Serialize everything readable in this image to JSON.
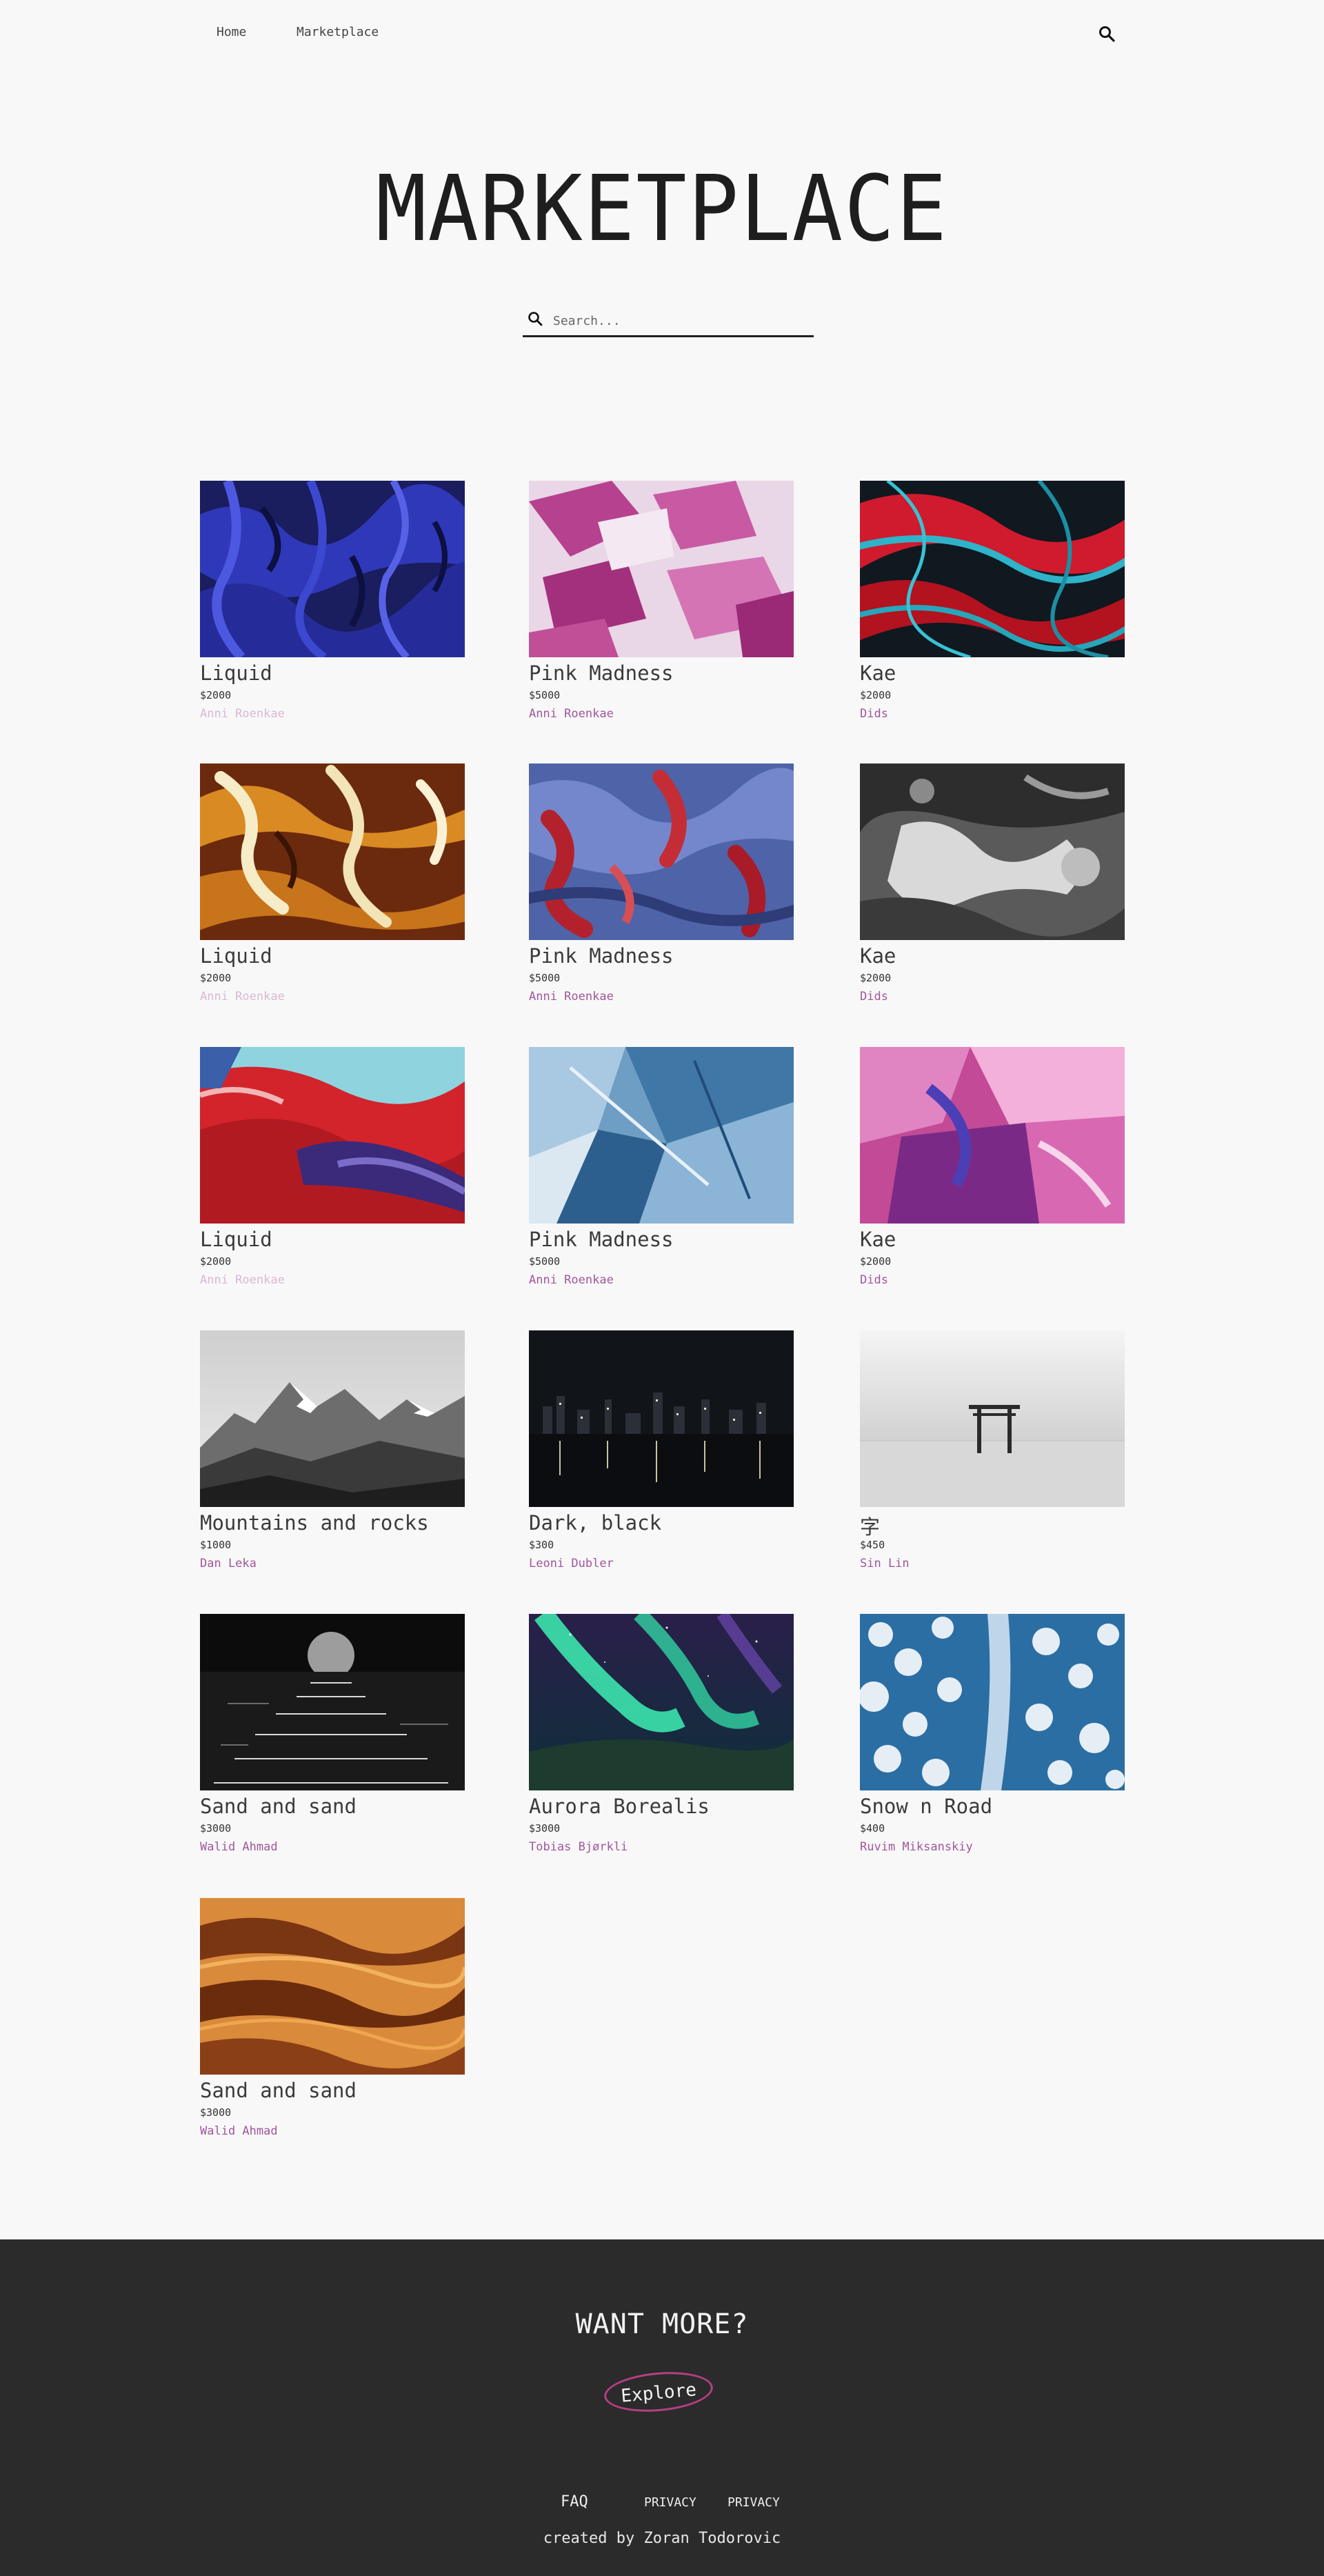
{
  "nav": {
    "home": "Home",
    "marketplace": "Marketplace"
  },
  "page": {
    "title": "MARKETPLACE"
  },
  "search": {
    "placeholder": "Search..."
  },
  "items": [
    {
      "name": "Liquid",
      "price": "$2000",
      "artist": "Anni Roenkae",
      "art": "blue-liquid"
    },
    {
      "name": "Pink Madness",
      "price": "$5000",
      "artist": "Anni Roenkae",
      "art": "pink-paint"
    },
    {
      "name": "Kae",
      "price": "$2000",
      "artist": "Dids",
      "art": "red-teal-swirl"
    },
    {
      "name": "Liquid",
      "price": "$2000",
      "artist": "Anni Roenkae",
      "art": "caramel-swirl"
    },
    {
      "name": "Pink Madness",
      "price": "$5000",
      "artist": "Anni Roenkae",
      "art": "blue-red-marble"
    },
    {
      "name": "Kae",
      "price": "$2000",
      "artist": "Dids",
      "art": "mono-texture"
    },
    {
      "name": "Liquid",
      "price": "$2000",
      "artist": "Anni Roenkae",
      "art": "red-wave"
    },
    {
      "name": "Pink Madness",
      "price": "$5000",
      "artist": "Anni Roenkae",
      "art": "blue-crystal"
    },
    {
      "name": "Kae",
      "price": "$2000",
      "artist": "Dids",
      "art": "pink-strokes"
    },
    {
      "name": "Mountains and rocks",
      "price": "$1000",
      "artist": "Dan Leka",
      "art": "mountains"
    },
    {
      "name": "Dark, black",
      "price": "$300",
      "artist": "Leoni Dubler",
      "art": "night-city"
    },
    {
      "name": "字",
      "price": "$450",
      "artist": "Sin Lin",
      "art": "torii-gate"
    },
    {
      "name": "Sand and sand",
      "price": "$3000",
      "artist": "Walid Ahmad",
      "art": "moon-sea"
    },
    {
      "name": "Aurora Borealis",
      "price": "$3000",
      "artist": "Tobias Bjørkli",
      "art": "aurora"
    },
    {
      "name": "Snow n Road",
      "price": "$400",
      "artist": "Ruvim Miksanskiy",
      "art": "snow-forest-road"
    },
    {
      "name": "Sand and sand",
      "price": "$3000",
      "artist": "Walid Ahmad",
      "art": "desert-dunes"
    }
  ],
  "footer": {
    "heading": "WANT MORE?",
    "explore": "Explore",
    "links": [
      "FAQ",
      "PRIVACY",
      "PRIVACY"
    ],
    "credit": "created by Zoran Todorovic"
  },
  "colors": {
    "accent": "#a0569c",
    "footer_bg": "#2b2b2b",
    "explore_ring": "#b63f83"
  }
}
